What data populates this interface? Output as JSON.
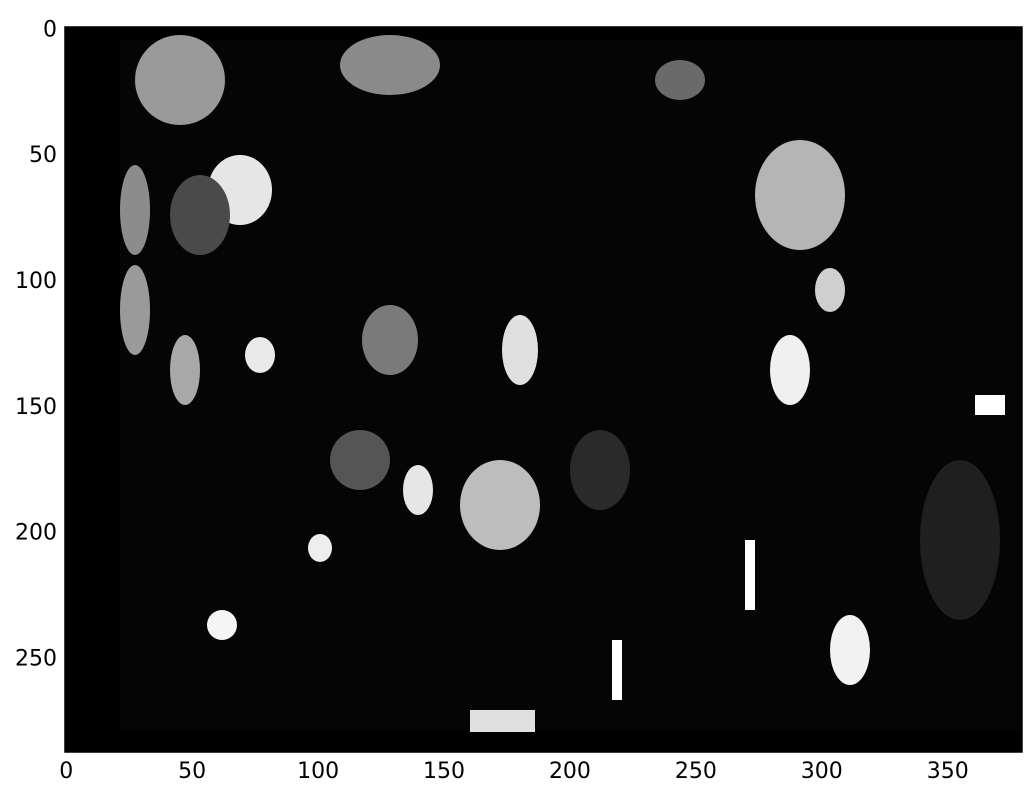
{
  "chart_data": {
    "type": "image",
    "xlim": [
      -0.5,
      379.5
    ],
    "ylim": [
      287.5,
      -0.5
    ],
    "xticks": [
      0,
      50,
      100,
      150,
      200,
      250,
      300,
      350
    ],
    "yticks": [
      0,
      50,
      100,
      150,
      200,
      250
    ]
  }
}
